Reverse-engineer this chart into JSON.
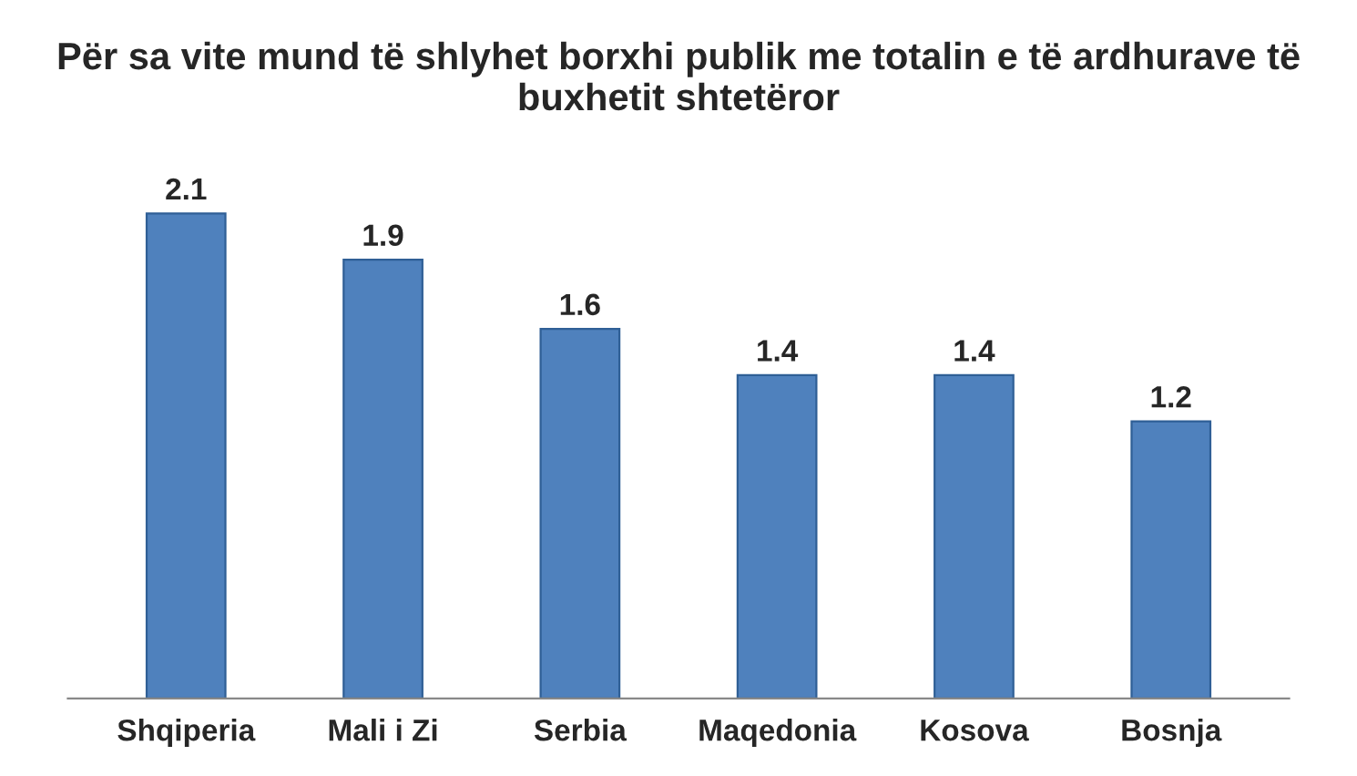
{
  "chart_data": {
    "type": "bar",
    "title": "Për sa vite mund të shlyhet borxhi publik me totalin e të ardhurave të buxhetit shtetëror",
    "categories": [
      "Shqiperia",
      "Mali i Zi",
      "Serbia",
      "Maqedonia",
      "Kosova",
      "Bosnja"
    ],
    "values": [
      2.1,
      1.9,
      1.6,
      1.4,
      1.4,
      1.2
    ],
    "color": "#4f81bd",
    "data_labels": true,
    "grid": false,
    "legend": false
  }
}
